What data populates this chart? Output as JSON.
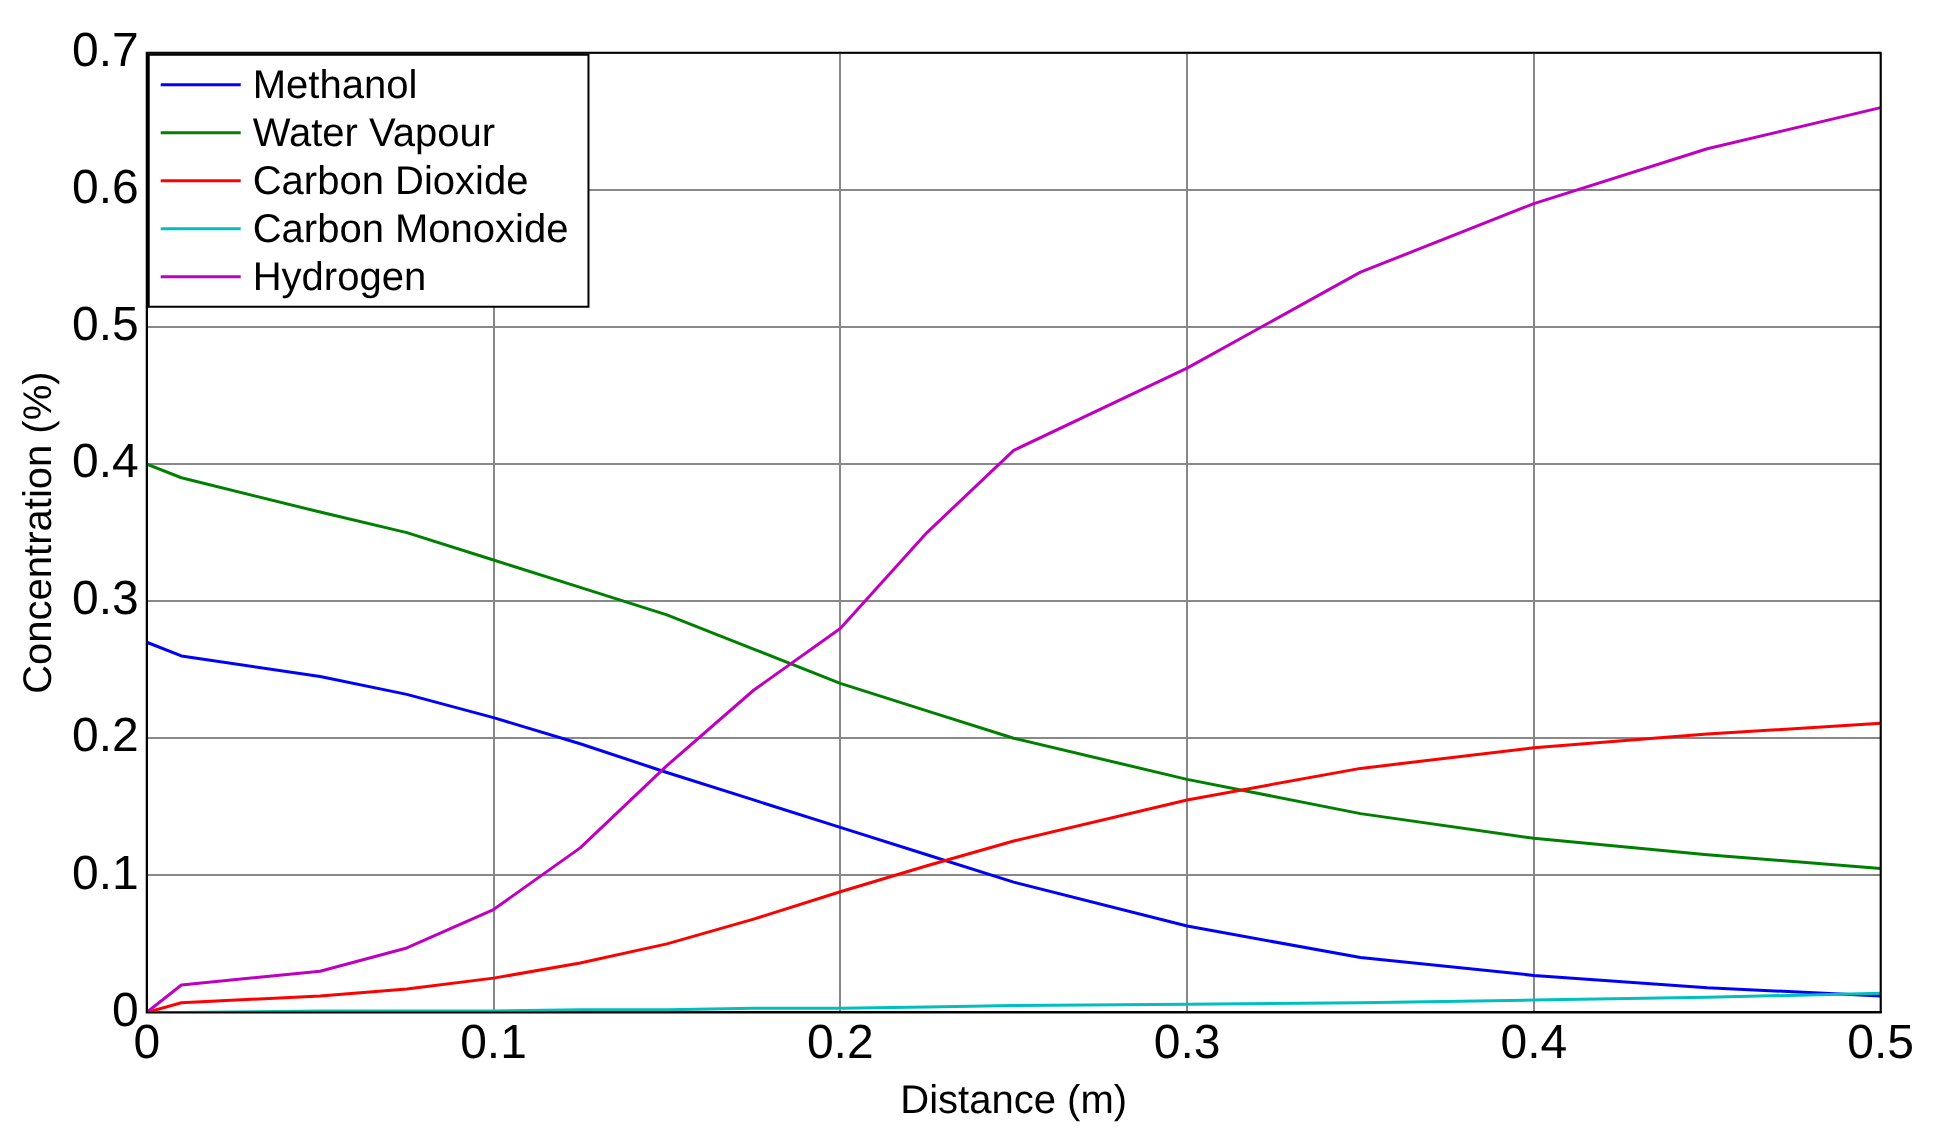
{
  "chart_data": {
    "type": "line",
    "xlabel": "Distance (m)",
    "ylabel": "Concentration (%)",
    "x": [
      0,
      0.01,
      0.05,
      0.075,
      0.1,
      0.125,
      0.15,
      0.175,
      0.2,
      0.225,
      0.25,
      0.3,
      0.35,
      0.4,
      0.45,
      0.5
    ],
    "series": [
      {
        "name": "Methanol",
        "color": "#0000ff",
        "values": [
          0.27,
          0.26,
          0.245,
          0.232,
          0.215,
          0.196,
          0.175,
          0.155,
          0.135,
          0.115,
          0.095,
          0.063,
          0.04,
          0.027,
          0.018,
          0.012
        ]
      },
      {
        "name": "Water Vapour",
        "color": "#008000",
        "values": [
          0.4,
          0.39,
          0.365,
          0.35,
          0.33,
          0.31,
          0.29,
          0.265,
          0.24,
          0.22,
          0.2,
          0.17,
          0.145,
          0.127,
          0.115,
          0.105
        ]
      },
      {
        "name": "Carbon Dioxide",
        "color": "#ff0000",
        "values": [
          0,
          0.007,
          0.012,
          0.017,
          0.025,
          0.036,
          0.05,
          0.068,
          0.088,
          0.107,
          0.125,
          0.155,
          0.178,
          0.193,
          0.203,
          0.211
        ]
      },
      {
        "name": "Carbon Monoxide",
        "color": "#00bfbf",
        "values": [
          0,
          0,
          0.001,
          0.001,
          0.001,
          0.002,
          0.002,
          0.003,
          0.003,
          0.004,
          0.005,
          0.006,
          0.007,
          0.009,
          0.011,
          0.014
        ]
      },
      {
        "name": "Hydrogen",
        "color": "#bf00bf",
        "values": [
          0,
          0.02,
          0.03,
          0.047,
          0.075,
          0.12,
          0.18,
          0.235,
          0.28,
          0.35,
          0.41,
          0.47,
          0.54,
          0.59,
          0.63,
          0.66
        ]
      }
    ],
    "xlim": [
      0,
      0.5
    ],
    "xticks": [
      0,
      0.1,
      0.2,
      0.3,
      0.4,
      0.5
    ],
    "ylim": [
      0,
      0.7
    ],
    "yticks": [
      0,
      0.1,
      0.2,
      0.3,
      0.4,
      0.5,
      0.6,
      0.7
    ],
    "grid": true,
    "legend": "top left",
    "marker": "none",
    "line_style": "solid"
  }
}
